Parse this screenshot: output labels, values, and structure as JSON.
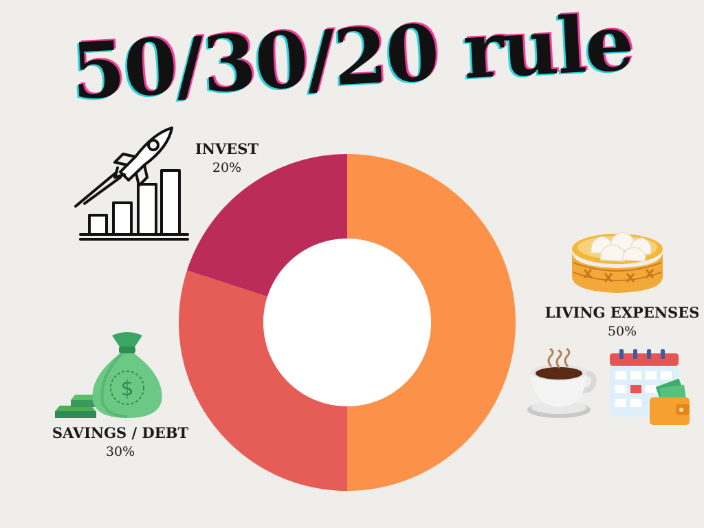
{
  "title": "50/30/20 rule",
  "chart_data": {
    "type": "pie",
    "donut": true,
    "slices": [
      {
        "label": "LIVING EXPENSES",
        "value": 50,
        "display": "50%",
        "color": "#fc9249"
      },
      {
        "label": "SAVINGS / DEBT",
        "value": 30,
        "display": "30%",
        "color": "#e65d57"
      },
      {
        "label": "INVEST",
        "value": 20,
        "display": "20%",
        "color": "#bb2c5b"
      }
    ]
  },
  "illustrations": {
    "invest": "rocket-growth-chart-icon",
    "savings": "money-bag-icon",
    "living_food": "dumpling-steamer-icon",
    "living_coffee": "coffee-cup-icon",
    "living_calendar": "calendar-icon",
    "living_wallet": "wallet-icon"
  }
}
